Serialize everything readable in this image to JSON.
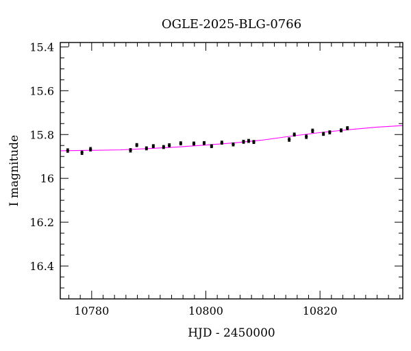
{
  "chart_data": {
    "type": "scatter",
    "title": "OGLE-2025-BLG-0766",
    "xlabel": "HJD - 2450000",
    "ylabel": "I magnitude",
    "xlim": [
      10774.5,
      10834.5
    ],
    "ylim": [
      16.55,
      15.38
    ],
    "y_inverted": true,
    "grid": false,
    "legend": "none",
    "x_major_ticks": [
      10780,
      10800,
      10820
    ],
    "x_minor_step": 2,
    "y_major_ticks": [
      15.4,
      15.6,
      15.8,
      16,
      16.2,
      16.4
    ],
    "y_tick_labels": [
      "15.4",
      "15.6",
      "15.8",
      "16",
      "16.2",
      "16.4"
    ],
    "y_minor_step": 0.05,
    "series": [
      {
        "kind": "points",
        "color": "#000000",
        "x": [
          10775.8,
          10778.3,
          10779.8,
          10786.8,
          10787.9,
          10789.6,
          10790.8,
          10792.6,
          10793.6,
          10795.6,
          10797.9,
          10799.7,
          10801.0,
          10802.8,
          10804.8,
          10806.6,
          10807.5,
          10808.4,
          10814.6,
          10815.5,
          10817.6,
          10818.7,
          10820.6,
          10821.7,
          10823.7,
          10824.8
        ],
        "y": [
          15.873,
          15.883,
          15.867,
          15.872,
          15.848,
          15.863,
          15.853,
          15.857,
          15.849,
          15.84,
          15.841,
          15.839,
          15.853,
          15.837,
          15.845,
          15.833,
          15.829,
          15.834,
          15.823,
          15.8,
          15.81,
          15.783,
          15.797,
          15.79,
          15.781,
          15.771
        ],
        "err": [
          0.008,
          0.008,
          0.008,
          0.008,
          0.007,
          0.007,
          0.007,
          0.007,
          0.007,
          0.007,
          0.007,
          0.007,
          0.007,
          0.007,
          0.007,
          0.007,
          0.007,
          0.007,
          0.008,
          0.007,
          0.008,
          0.008,
          0.007,
          0.007,
          0.007,
          0.007
        ]
      },
      {
        "kind": "model",
        "color": "#ff00ff",
        "x": [
          10774.5,
          10780,
          10785,
          10790,
          10795,
          10800,
          10805,
          10810,
          10815,
          10820,
          10825,
          10830,
          10834.5
        ],
        "y": [
          15.874,
          15.872,
          15.87,
          15.864,
          15.857,
          15.848,
          15.838,
          15.825,
          15.807,
          15.791,
          15.778,
          15.766,
          15.759
        ]
      }
    ]
  }
}
